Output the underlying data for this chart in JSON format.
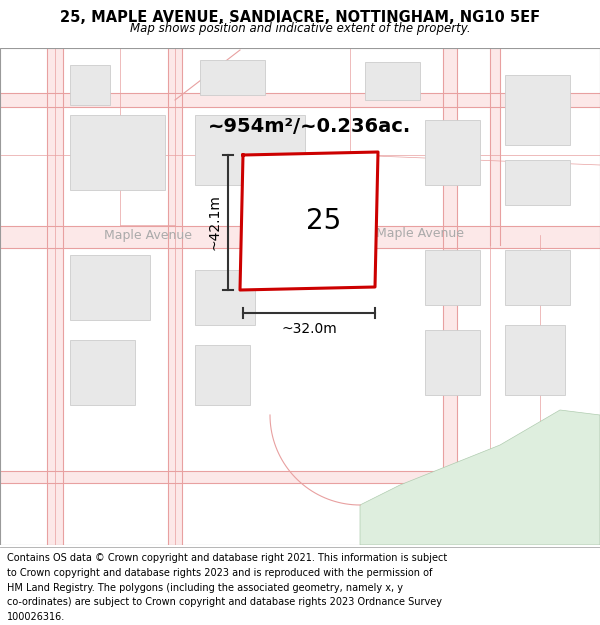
{
  "title_line1": "25, MAPLE AVENUE, SANDIACRE, NOTTINGHAM, NG10 5EF",
  "title_line2": "Map shows position and indicative extent of the property.",
  "footer_lines": [
    "Contains OS data © Crown copyright and database right 2021. This information is subject to Crown copyright and database rights 2023 and is reproduced with the permission of",
    "HM Land Registry. The polygons (including the associated geometry, namely x, y co-ordinates) are subject to Crown copyright and database rights 2023 Ordnance Survey",
    "100026316."
  ],
  "area_label": "~954m²/~0.236ac.",
  "height_label": "~42.1m",
  "width_label": "~32.0m",
  "property_number": "25",
  "street_label": "Maple Avenue",
  "map_bg": "#f8f8f8",
  "building_fill": "#e8e8e8",
  "building_edge": "#cccccc",
  "road_fill": "#fce8e8",
  "road_edge": "#e8a0a0",
  "property_fill": "#ffffff",
  "property_border": "#cc0000",
  "dim_color": "#333333",
  "green_color": "#deeede",
  "title_fs": 10.5,
  "sub_fs": 8.5,
  "footer_fs": 7.0,
  "area_fs": 14,
  "street_fs": 9,
  "num_fs": 20,
  "dim_fs": 10
}
